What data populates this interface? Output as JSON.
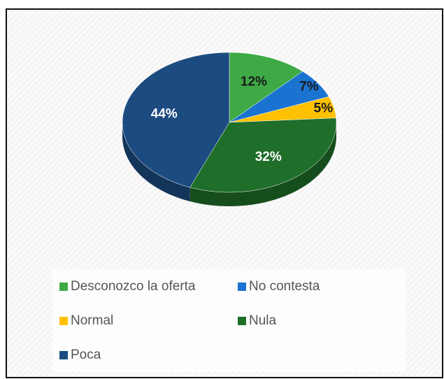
{
  "chart_data": {
    "type": "pie",
    "categories": [
      "Desconozco la oferta",
      "No contesta",
      "Normal",
      "Nula",
      "Poca"
    ],
    "values": [
      12,
      7,
      5,
      32,
      44
    ],
    "value_labels": [
      "12%",
      "7%",
      "5%",
      "32%",
      "44%"
    ],
    "colors": [
      "#3daa46",
      "#1a73d0",
      "#ffc000",
      "#1f6e2a",
      "#1c4b80"
    ],
    "label_colors": [
      "#1a1a1a",
      "#1a1a1a",
      "#1a1a1a",
      "#ffffff",
      "#ffffff"
    ],
    "legend": "bottom"
  }
}
